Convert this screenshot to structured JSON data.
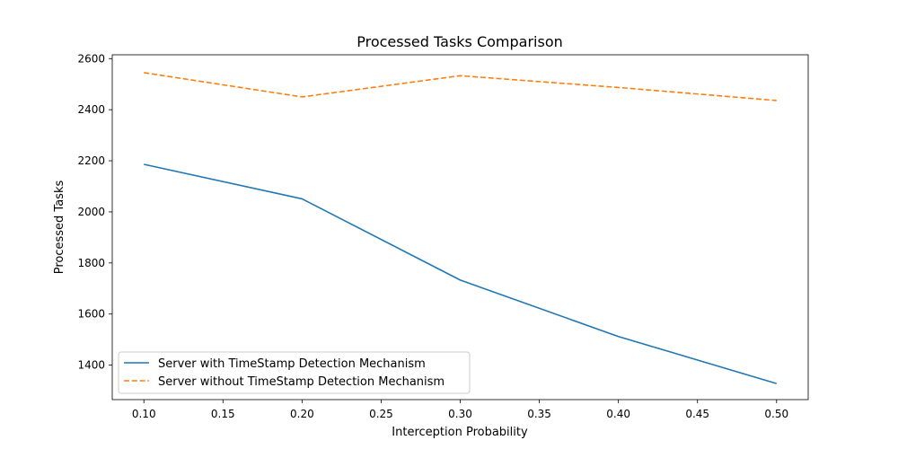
{
  "chart_data": {
    "type": "line",
    "title": "Processed Tasks Comparison",
    "xlabel": "Interception Probability",
    "ylabel": "Processed Tasks",
    "x": [
      0.1,
      0.2,
      0.3,
      0.4,
      0.5
    ],
    "xlim": [
      0.08,
      0.52
    ],
    "ylim": [
      1265,
      2615
    ],
    "xticks": [
      0.1,
      0.15,
      0.2,
      0.25,
      0.3,
      0.35,
      0.4,
      0.45,
      0.5
    ],
    "xtick_labels": [
      "0.10",
      "0.15",
      "0.20",
      "0.25",
      "0.30",
      "0.35",
      "0.40",
      "0.45",
      "0.50"
    ],
    "yticks": [
      1400,
      1600,
      1800,
      2000,
      2200,
      2400,
      2600
    ],
    "ytick_labels": [
      "1400",
      "1600",
      "1800",
      "2000",
      "2200",
      "2400",
      "2600"
    ],
    "grid": false,
    "legend_position": "lower-left",
    "series": [
      {
        "name": "Server with TimeStamp Detection Mechanism",
        "values": [
          2186,
          2051,
          1733,
          1512,
          1328
        ],
        "color": "#1f77b4",
        "style": "solid"
      },
      {
        "name": "Server without TimeStamp Detection Mechanism",
        "values": [
          2545,
          2450,
          2533,
          2487,
          2436
        ],
        "color": "#ff7f0e",
        "style": "dashed"
      }
    ]
  }
}
